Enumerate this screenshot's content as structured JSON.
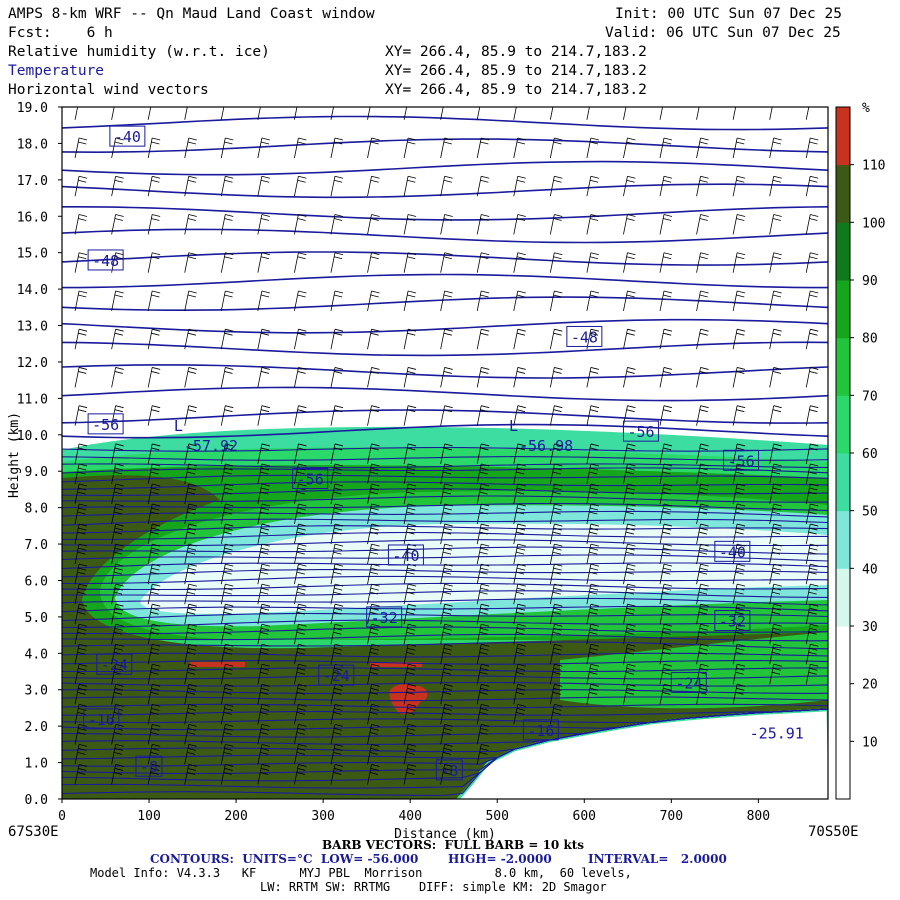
{
  "header": {
    "model_title": "AMPS 8-km WRF -- Qn Maud Land Coast window",
    "init": "Init: 00 UTC Sun 07 Dec 25",
    "fcst": "Fcst:    6 h",
    "valid": "Valid: 06 UTC Sun 07 Dec 25",
    "fields": [
      {
        "label": "Relative humidity (w.r.t. ice)",
        "xy": "XY= 266.4, 85.9 to 214.7,183.2",
        "color": "#000000"
      },
      {
        "label": "Temperature",
        "xy": "XY= 266.4, 85.9 to 214.7,183.2",
        "color": "#1a1a9c"
      },
      {
        "label": "Horizontal wind vectors",
        "xy": "XY= 266.4, 85.9 to 214.7,183.2",
        "color": "#000000"
      }
    ]
  },
  "chart_data": {
    "type": "heatmap",
    "xlabel": "Distance (km)",
    "ylabel": "Height (km)",
    "xlim": [
      0,
      880
    ],
    "ylim": [
      0,
      19
    ],
    "x_ticks": [
      "0",
      "100",
      "200",
      "300",
      "400",
      "500",
      "600",
      "700",
      "800"
    ],
    "y_ticks": [
      "0.0",
      "1.0",
      "2.0",
      "3.0",
      "4.0",
      "5.0",
      "6.0",
      "7.0",
      "8.0",
      "9.0",
      "10.0",
      "11.0",
      "12.0",
      "13.0",
      "14.0",
      "15.0",
      "16.0",
      "17.0",
      "18.0",
      "19.0"
    ],
    "left_endpoint": "67S30E",
    "right_endpoint": "70S50E",
    "colorbar": {
      "unit": "%",
      "tick_labels": [
        "10",
        "20",
        "30",
        "40",
        "50",
        "60",
        "70",
        "80",
        "90",
        "100",
        "110"
      ],
      "colors": [
        "#ffffff",
        "#ffffff",
        "#ffffff",
        "#d6f7ee",
        "#7fe6dc",
        "#3ddca0",
        "#2bd96a",
        "#22c43a",
        "#16a61b",
        "#0f7a1a",
        "#3d5a14",
        "#c8321e"
      ]
    },
    "temperature_labels": [
      {
        "text": "-40",
        "x": 55,
        "y": 18.2
      },
      {
        "text": "-48",
        "x": 30,
        "y": 14.8
      },
      {
        "text": "-48",
        "x": 580,
        "y": 12.7
      },
      {
        "text": "-56",
        "x": 30,
        "y": 10.3
      },
      {
        "text": "-56",
        "x": 645,
        "y": 10.1
      },
      {
        "text": "-56",
        "x": 760,
        "y": 9.3
      },
      {
        "text": "-56",
        "x": 265,
        "y": 8.8
      },
      {
        "text": "-40",
        "x": 375,
        "y": 6.7
      },
      {
        "text": "-40",
        "x": 750,
        "y": 6.8
      },
      {
        "text": "-32",
        "x": 350,
        "y": 5.0
      },
      {
        "text": "-32",
        "x": 750,
        "y": 4.9
      },
      {
        "text": "-24",
        "x": 40,
        "y": 3.7
      },
      {
        "text": "-24",
        "x": 295,
        "y": 3.4
      },
      {
        "text": "-24",
        "x": 700,
        "y": 3.2
      },
      {
        "text": "-16",
        "x": 25,
        "y": 2.2
      },
      {
        "text": "-16",
        "x": 530,
        "y": 1.9
      },
      {
        "text": "-8",
        "x": 85,
        "y": 0.9
      },
      {
        "text": "-8",
        "x": 430,
        "y": 0.8
      }
    ],
    "extrema": [
      {
        "marker": "L",
        "value": "-57.92",
        "x": 140,
        "y": 10.0
      },
      {
        "marker": "L",
        "value": "-56.98",
        "x": 525,
        "y": 10.0
      },
      {
        "value": "-25.91",
        "x": 790,
        "y": 2.1
      }
    ],
    "terrain_km": [
      [
        455,
        0.0
      ],
      [
        470,
        0.4
      ],
      [
        490,
        1.0
      ],
      [
        520,
        1.35
      ],
      [
        560,
        1.6
      ],
      [
        600,
        1.78
      ],
      [
        640,
        1.95
      ],
      [
        680,
        2.1
      ],
      [
        720,
        2.2
      ],
      [
        760,
        2.28
      ],
      [
        800,
        2.35
      ],
      [
        840,
        2.4
      ],
      [
        880,
        2.45
      ]
    ]
  },
  "footer": {
    "barb_vectors": "BARB VECTORS:  FULL BARB = 10 kts",
    "contours": "CONTOURS:  UNITS=°C  LOW= -56.000",
    "high": "HIGH= -2.0000",
    "interval": "INTERVAL=   2.0000",
    "model_info": "Model Info: V4.3.3   KF      MYJ PBL  Morrison          8.0 km,  60 levels,",
    "physics": "LW: RRTM SW: RRTMG    DIFF: simple KM: 2D Smagor"
  }
}
